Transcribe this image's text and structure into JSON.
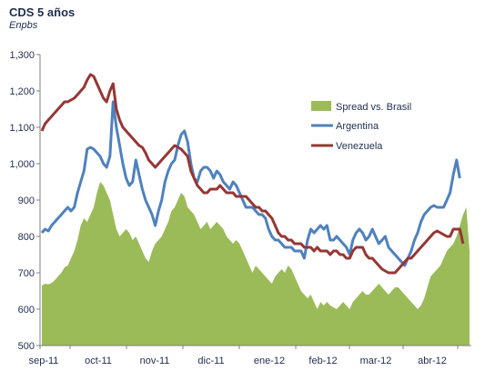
{
  "chart_data": {
    "type": "line",
    "title": "CDS 5 años",
    "subtitle": "Enpbs",
    "xlabel": "",
    "ylabel": "",
    "ylim": [
      500,
      1300
    ],
    "yticks": [
      500,
      600,
      700,
      800,
      900,
      "1,000",
      "1,100",
      "1,200",
      "1,300"
    ],
    "xticks": [
      "sep-11",
      "oct-11",
      "nov-11",
      "dic-11",
      "ene-12",
      "feb-12",
      "mar-12",
      "abr-12"
    ],
    "grid": false,
    "legend_position": "right",
    "colors": {
      "spread": "#9bbb59",
      "argentina": "#4f81bd",
      "venezuela": "#953735"
    },
    "series": [
      {
        "name": "Spread vs. Brasil",
        "type": "area",
        "values": [
          665,
          670,
          668,
          672,
          680,
          690,
          700,
          715,
          720,
          740,
          760,
          790,
          830,
          850,
          840,
          860,
          880,
          920,
          950,
          940,
          920,
          900,
          860,
          820,
          800,
          810,
          820,
          810,
          790,
          800,
          780,
          760,
          740,
          730,
          760,
          780,
          790,
          800,
          820,
          840,
          870,
          880,
          900,
          920,
          910,
          880,
          870,
          860,
          840,
          820,
          830,
          840,
          820,
          830,
          840,
          830,
          820,
          800,
          790,
          780,
          790,
          780,
          760,
          740,
          720,
          700,
          720,
          710,
          700,
          690,
          680,
          670,
          690,
          700,
          710,
          700,
          720,
          710,
          690,
          670,
          650,
          640,
          630,
          640,
          620,
          600,
          620,
          610,
          620,
          610,
          605,
          600,
          610,
          620,
          610,
          600,
          620,
          630,
          640,
          650,
          640,
          640,
          650,
          660,
          670,
          660,
          650,
          640,
          650,
          660,
          660,
          650,
          640,
          630,
          620,
          610,
          600,
          610,
          630,
          660,
          690,
          700,
          710,
          720,
          740,
          760,
          770,
          780,
          800,
          830,
          860,
          880,
          760
        ]
      },
      {
        "name": "Argentina",
        "type": "line",
        "values": [
          810,
          820,
          815,
          830,
          840,
          850,
          860,
          870,
          880,
          870,
          880,
          920,
          950,
          980,
          1040,
          1045,
          1040,
          1030,
          1020,
          1000,
          990,
          1020,
          1170,
          1100,
          1050,
          1000,
          960,
          940,
          950,
          1010,
          970,
          930,
          900,
          880,
          860,
          830,
          870,
          900,
          950,
          980,
          1000,
          1010,
          1050,
          1080,
          1090,
          1060,
          1000,
          960,
          950,
          980,
          990,
          990,
          980,
          960,
          980,
          970,
          950,
          940,
          930,
          950,
          940,
          920,
          900,
          880,
          880,
          880,
          870,
          860,
          860,
          850,
          820,
          800,
          790,
          790,
          780,
          770,
          770,
          770,
          760,
          760,
          760,
          740,
          790,
          820,
          810,
          820,
          830,
          820,
          830,
          790,
          790,
          800,
          790,
          780,
          770,
          750,
          790,
          810,
          820,
          810,
          790,
          800,
          820,
          800,
          780,
          790,
          800,
          770,
          760,
          750,
          740,
          730,
          720,
          740,
          760,
          790,
          810,
          840,
          860,
          870,
          880,
          885,
          880,
          880,
          880,
          900,
          920,
          970,
          1010,
          960
        ]
      },
      {
        "name": "Venezuela",
        "type": "line",
        "values": [
          1090,
          1110,
          1120,
          1130,
          1140,
          1150,
          1160,
          1170,
          1170,
          1175,
          1180,
          1190,
          1200,
          1210,
          1230,
          1245,
          1240,
          1220,
          1200,
          1180,
          1170,
          1200,
          1220,
          1150,
          1120,
          1100,
          1090,
          1080,
          1070,
          1060,
          1050,
          1045,
          1030,
          1010,
          1000,
          990,
          1000,
          1010,
          1020,
          1030,
          1040,
          1050,
          1045,
          1040,
          1030,
          1020,
          980,
          960,
          940,
          930,
          920,
          920,
          930,
          930,
          930,
          940,
          930,
          920,
          920,
          920,
          910,
          910,
          910,
          910,
          900,
          890,
          880,
          880,
          870,
          870,
          860,
          850,
          830,
          810,
          800,
          800,
          790,
          790,
          780,
          780,
          780,
          770,
          770,
          770,
          760,
          770,
          760,
          760,
          760,
          750,
          760,
          760,
          750,
          750,
          740,
          740,
          760,
          770,
          770,
          770,
          750,
          740,
          740,
          730,
          720,
          710,
          705,
          700,
          700,
          700,
          710,
          720,
          730,
          740,
          740,
          750,
          760,
          770,
          780,
          790,
          800,
          810,
          815,
          810,
          805,
          800,
          800,
          820,
          820,
          820,
          780
        ]
      }
    ]
  }
}
